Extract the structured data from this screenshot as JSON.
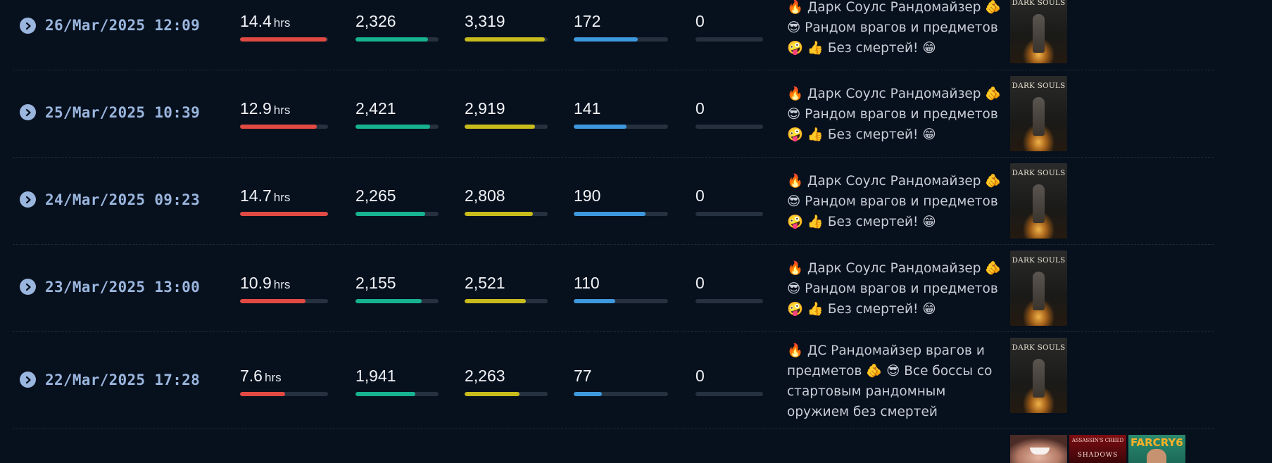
{
  "colors": {
    "hours": "#e14a43",
    "peak": "#17b290",
    "avg": "#c8bb1c",
    "followers": "#3e98dd",
    "subs": "#5a6676"
  },
  "unit_hours": "hrs",
  "rows": [
    {
      "date": "26/Mar/2025 12:09",
      "hours": "14.4",
      "hours_pct": 0.98,
      "peak": "2,326",
      "peak_pct": 0.87,
      "avg": "3,319",
      "avg_pct": 0.97,
      "followers": "172",
      "followers_pct": 0.68,
      "subs": "0",
      "subs_pct": 0,
      "title": "🔥 Дарк Соулс Рандомайзер 🫵 😎 Рандом врагов и предметов 🤪 👍 Без смертей! 😁",
      "cover": "DARK SOULS"
    },
    {
      "date": "25/Mar/2025 10:39",
      "hours": "12.9",
      "hours_pct": 0.87,
      "peak": "2,421",
      "peak_pct": 0.9,
      "avg": "2,919",
      "avg_pct": 0.85,
      "followers": "141",
      "followers_pct": 0.56,
      "subs": "0",
      "subs_pct": 0,
      "title": "🔥 Дарк Соулс Рандомайзер 🫵 😎 Рандом врагов и предметов 🤪 👍 Без смертей! 😁",
      "cover": "DARK SOULS"
    },
    {
      "date": "24/Mar/2025 09:23",
      "hours": "14.7",
      "hours_pct": 1.0,
      "peak": "2,265",
      "peak_pct": 0.84,
      "avg": "2,808",
      "avg_pct": 0.82,
      "followers": "190",
      "followers_pct": 0.76,
      "subs": "0",
      "subs_pct": 0,
      "title": "🔥 Дарк Соулс Рандомайзер 🫵 😎 Рандом врагов и предметов 🤪 👍 Без смертей! 😁",
      "cover": "DARK SOULS"
    },
    {
      "date": "23/Mar/2025 13:00",
      "hours": "10.9",
      "hours_pct": 0.74,
      "peak": "2,155",
      "peak_pct": 0.8,
      "avg": "2,521",
      "avg_pct": 0.74,
      "followers": "110",
      "followers_pct": 0.44,
      "subs": "0",
      "subs_pct": 0,
      "title": "🔥 Дарк Соулс Рандомайзер 🫵 😎 Рандом врагов и предметов 🤪 👍 Без смертей! 😁",
      "cover": "DARK SOULS"
    },
    {
      "date": "22/Mar/2025 17:28",
      "hours": "7.6",
      "hours_pct": 0.51,
      "peak": "1,941",
      "peak_pct": 0.72,
      "avg": "2,263",
      "avg_pct": 0.66,
      "followers": "77",
      "followers_pct": 0.3,
      "subs": "0",
      "subs_pct": 0,
      "title": "🔥 ДС Рандомайзер врагов и предметов 🫵 😎 Все боссы со стартовым рандомным оружием без смертей",
      "cover": "DARK SOULS"
    }
  ],
  "partial_row_covers": [
    {
      "name": "streamer"
    },
    {
      "name": "assassins-creed-shadows",
      "line1": "ASSASSIN'S CREED",
      "line2": "SHADOWS"
    },
    {
      "name": "far-cry-6",
      "line1": "FARCRY6"
    }
  ]
}
